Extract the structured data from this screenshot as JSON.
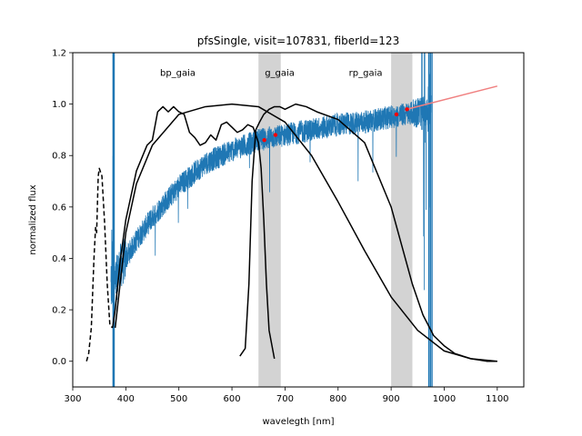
{
  "chart_data": {
    "type": "line",
    "title": "pfsSingle, visit=107831, fiberId=123",
    "xlabel": "wavelegth [nm]",
    "ylabel": "normalized flux",
    "xlim": [
      300,
      1150
    ],
    "ylim": [
      -0.1,
      1.2
    ],
    "xticks": [
      "300",
      "400",
      "500",
      "600",
      "700",
      "800",
      "900",
      "1000",
      "1100"
    ],
    "yticks": [
      "0.0",
      "0.2",
      "0.4",
      "0.6",
      "0.8",
      "1.0",
      "1.2"
    ],
    "grid": false,
    "legend": "none",
    "colors": {
      "spectrum": "#1f77b4",
      "filter": "#000000",
      "shade": "#d3d3d3",
      "photometry": "#ff0000",
      "extrapolation": "#f08080"
    },
    "band_labels": [
      {
        "text": "bp_gaia",
        "x": 498,
        "y": 1.11
      },
      {
        "text": "g_gaia",
        "x": 690,
        "y": 1.11
      },
      {
        "text": "rp_gaia",
        "x": 852,
        "y": 1.11
      }
    ],
    "shaded_regions": [
      {
        "x": [
          650,
          692
        ]
      },
      {
        "x": [
          900,
          940
        ]
      }
    ],
    "spectrum_envelope": {
      "x": [
        372,
        380,
        385,
        390,
        400,
        420,
        450,
        500,
        550,
        600,
        650,
        700,
        750,
        800,
        850,
        900,
        950,
        975
      ],
      "y": [
        0.28,
        0.3,
        0.34,
        0.37,
        0.4,
        0.47,
        0.56,
        0.68,
        0.77,
        0.82,
        0.86,
        0.88,
        0.9,
        0.92,
        0.93,
        0.95,
        0.97,
        0.98
      ]
    },
    "filter_curves": [
      {
        "name": "bp_gaia",
        "style": "solid",
        "x": [
          375,
          380,
          385,
          390,
          400,
          420,
          440,
          450,
          460,
          470,
          480,
          490,
          500,
          510,
          520,
          530,
          540,
          550,
          560,
          570,
          580,
          590,
          600,
          610,
          620,
          630,
          640,
          650,
          655,
          660,
          665,
          670,
          680
        ],
        "y": [
          0.13,
          0.2,
          0.3,
          0.4,
          0.55,
          0.74,
          0.84,
          0.86,
          0.97,
          0.99,
          0.97,
          0.99,
          0.97,
          0.96,
          0.89,
          0.87,
          0.84,
          0.85,
          0.88,
          0.86,
          0.92,
          0.93,
          0.91,
          0.89,
          0.9,
          0.92,
          0.91,
          0.85,
          0.75,
          0.55,
          0.3,
          0.12,
          0.01
        ]
      },
      {
        "name": "bp_gaia_short",
        "style": "dashed",
        "x": [
          326,
          330,
          335,
          340,
          343,
          345,
          348,
          350,
          355,
          360,
          365,
          370,
          375
        ],
        "y": [
          0.0,
          0.03,
          0.13,
          0.4,
          0.52,
          0.5,
          0.72,
          0.75,
          0.72,
          0.54,
          0.3,
          0.14,
          0.13
        ]
      },
      {
        "name": "g_gaia",
        "style": "solid",
        "x": [
          380,
          400,
          420,
          450,
          500,
          550,
          600,
          650,
          700,
          750,
          800,
          850,
          900,
          950,
          1000,
          1050,
          1100
        ],
        "y": [
          0.13,
          0.5,
          0.69,
          0.84,
          0.96,
          0.99,
          1.0,
          0.99,
          0.93,
          0.8,
          0.62,
          0.43,
          0.25,
          0.12,
          0.04,
          0.01,
          0.0
        ]
      },
      {
        "name": "rp_gaia",
        "style": "solid",
        "x": [
          615,
          625,
          632,
          638,
          645,
          652,
          660,
          670,
          680,
          690,
          700,
          720,
          740,
          760,
          800,
          850,
          900,
          920,
          940,
          960,
          980,
          1000,
          1020,
          1050,
          1080,
          1100
        ],
        "y": [
          0.02,
          0.05,
          0.3,
          0.7,
          0.9,
          0.93,
          0.96,
          0.98,
          0.99,
          0.99,
          0.98,
          1.0,
          0.99,
          0.97,
          0.94,
          0.85,
          0.6,
          0.45,
          0.3,
          0.18,
          0.1,
          0.06,
          0.03,
          0.01,
          0.0,
          0.0
        ]
      }
    ],
    "photometry_points": [
      {
        "x": 661,
        "y": 0.86
      },
      {
        "x": 682,
        "y": 0.88
      },
      {
        "x": 910,
        "y": 0.96
      },
      {
        "x": 930,
        "y": 0.98
      }
    ],
    "extrapolation_line": {
      "x": [
        930,
        1100
      ],
      "y": [
        0.98,
        1.07
      ]
    }
  }
}
